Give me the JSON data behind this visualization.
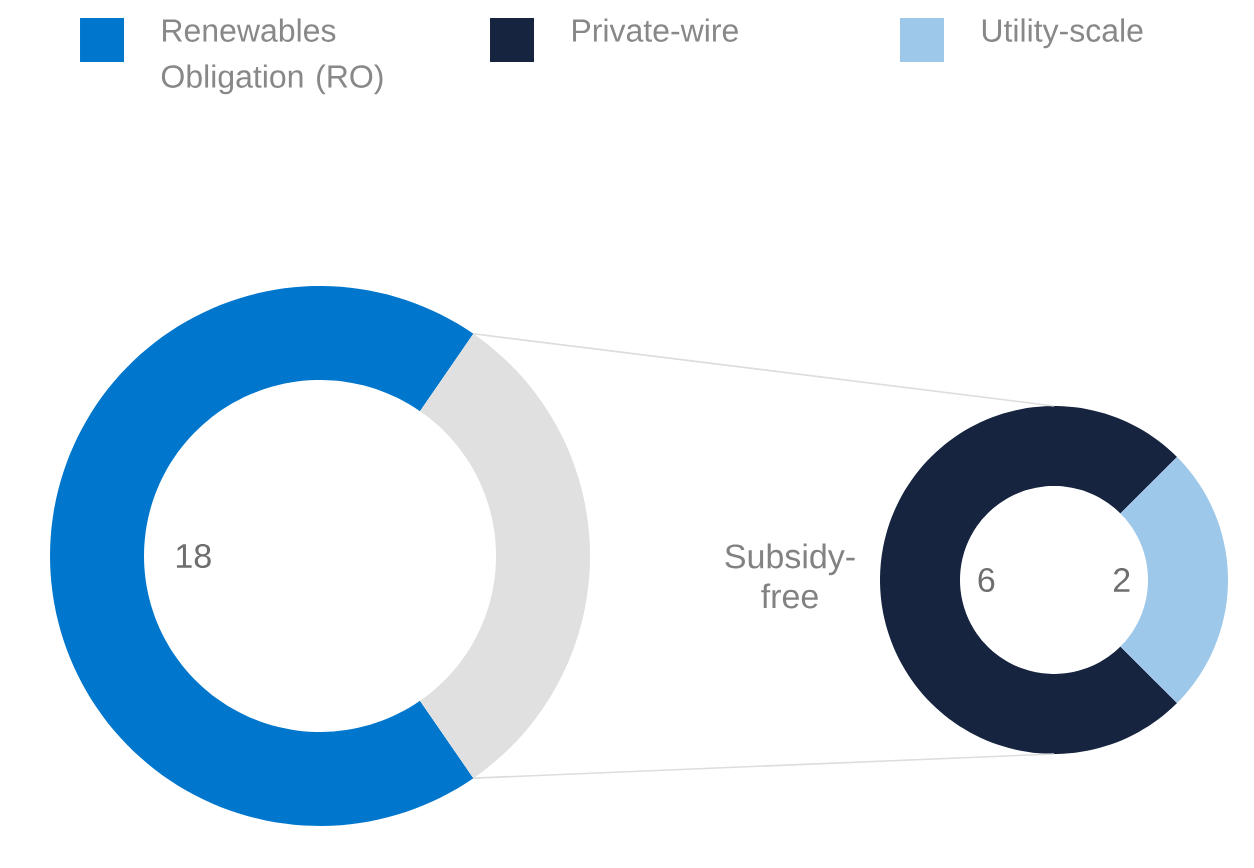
{
  "chart_data": [
    {
      "type": "donut",
      "categories": [
        "Renewables Obligation (RO)",
        "Subsidy-free"
      ],
      "values": [
        18,
        8
      ],
      "colors": [
        "#0077cc",
        "#e0e0e0"
      ],
      "value_labels": [
        "18",
        null
      ],
      "legend": "top"
    },
    {
      "type": "donut",
      "categories": [
        "Private-wire",
        "Utility-scale"
      ],
      "values": [
        6,
        2
      ],
      "colors": [
        "#16243f",
        "#9dc8ea"
      ],
      "data_labels": true,
      "legend": "top"
    }
  ]
}
